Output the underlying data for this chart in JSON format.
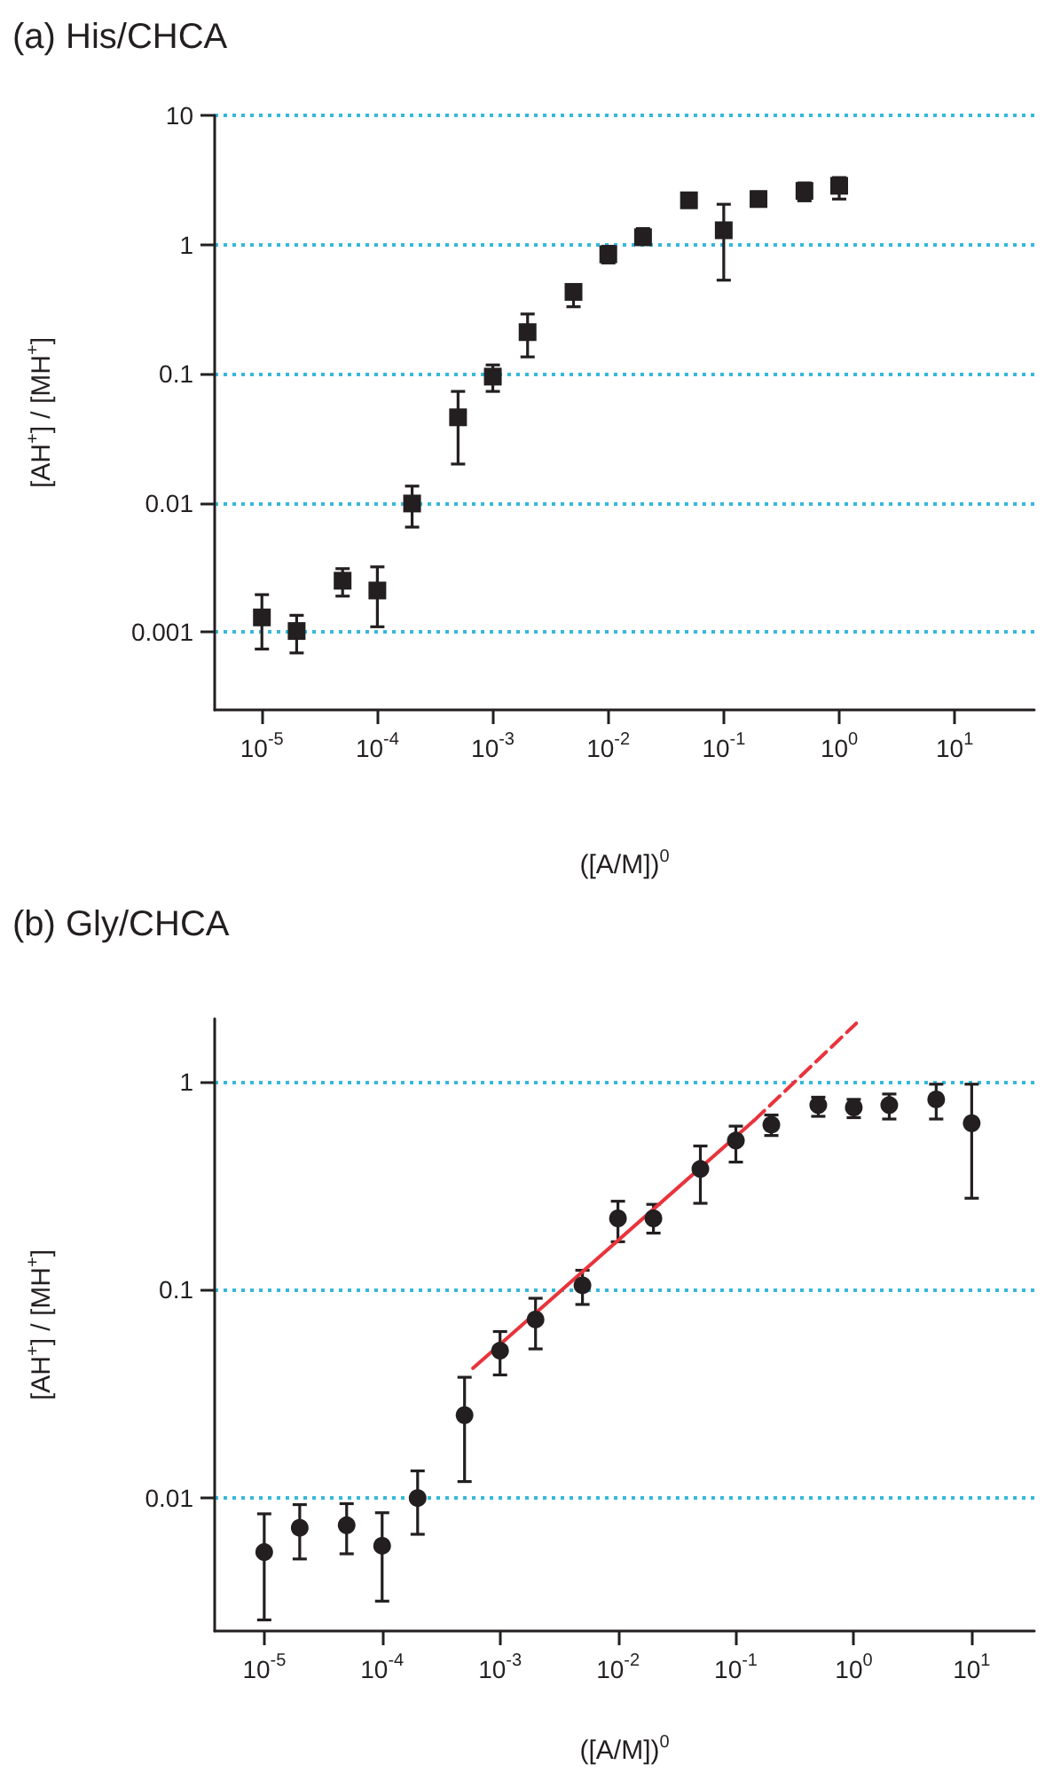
{
  "chart_data": [
    {
      "type": "scatter",
      "title": "(a) His/CHCA",
      "xlabel": "([A/M])$^{0}$",
      "ylabel": "[AH$^{+}$] / [MH$^{+}$]",
      "log": "xy",
      "grid": "y",
      "marker": "square",
      "x": [
        1e-05,
        2e-05,
        5e-05,
        0.0001,
        0.0002,
        0.0005,
        0.001,
        0.002,
        0.005,
        0.01,
        0.02,
        0.05,
        0.1,
        0.2,
        0.5,
        1
      ],
      "series": [
        {
          "color": "#231f20",
          "values": [
            0.0013,
            0.00102,
            0.0025,
            0.0021,
            0.0099,
            0.046,
            0.095,
            0.21,
            0.43,
            0.84,
            1.14,
            2.2,
            1.29,
            2.25,
            2.6,
            2.85
          ],
          "errors": [
            [
              0.00074,
              0.00195
            ],
            [
              0.00069,
              0.00135
            ],
            [
              0.0019,
              0.0031
            ],
            [
              0.0011,
              0.0032
            ],
            [
              0.0065,
              0.0135
            ],
            [
              0.02,
              0.073
            ],
            [
              0.073,
              0.117
            ],
            [
              0.135,
              0.29
            ],
            [
              0.33,
              0.49
            ],
            [
              0.72,
              0.97
            ],
            [
              1.0,
              1.33
            ],
            null,
            [
              0.53,
              2.05
            ],
            [
              1.99,
              2.55
            ],
            [
              2.18,
              3.0
            ],
            [
              2.25,
              3.3
            ]
          ]
        }
      ],
      "xlim": [
        3.9e-06,
        49
      ],
      "xticks": [
        {
          "value": 1e-05,
          "label": "10$^{-5}$"
        },
        {
          "value": 0.0001,
          "label": "10$^{-4}$"
        },
        {
          "value": 0.001,
          "label": "10$^{-3}$"
        },
        {
          "value": 0.01,
          "label": "10$^{-2}$"
        },
        {
          "value": 0.1,
          "label": "10$^{-1}$"
        },
        {
          "value": 1,
          "label": "10$^{0}$"
        },
        {
          "value": 10,
          "label": "10$^{1}$"
        }
      ],
      "ylim": [
        0.00025,
        10
      ],
      "yticks": [
        0.001,
        0.01,
        0.1,
        1,
        10
      ]
    },
    {
      "type": "scatter",
      "title": "(b) Gly/CHCA",
      "xlabel": "([A/M])$^{0}$",
      "ylabel": "[AH$^{+}$] / [MH$^{+}$]",
      "log": "xy",
      "grid": "y",
      "marker": "circle",
      "x": [
        1e-05,
        2e-05,
        5e-05,
        0.0001,
        0.0002,
        0.0005,
        0.001,
        0.002,
        0.005,
        0.01,
        0.02,
        0.05,
        0.1,
        0.2,
        0.5,
        1,
        2,
        5,
        10
      ],
      "series": [
        {
          "color": "#231f20",
          "values": [
            0.0055,
            0.0072,
            0.0074,
            0.0059,
            0.01,
            0.025,
            0.051,
            0.072,
            0.105,
            0.22,
            0.22,
            0.38,
            0.52,
            0.62,
            0.77,
            0.75,
            0.77,
            0.82,
            0.63
          ],
          "errors": [
            [
              0.0026,
              0.0084
            ],
            [
              0.0051,
              0.0093
            ],
            [
              0.0054,
              0.0094
            ],
            [
              0.0032,
              0.0085
            ],
            [
              0.0067,
              0.0135
            ],
            [
              0.012,
              0.038
            ],
            [
              0.039,
              0.063
            ],
            [
              0.052,
              0.091
            ],
            [
              0.085,
              0.124
            ],
            [
              0.17,
              0.266
            ],
            [
              0.187,
              0.257
            ],
            [
              0.26,
              0.49
            ],
            [
              0.41,
              0.61
            ],
            [
              0.55,
              0.69
            ],
            [
              0.68,
              0.84
            ],
            [
              0.67,
              0.82
            ],
            [
              0.66,
              0.87
            ],
            [
              0.66,
              0.97
            ],
            [
              0.275,
              0.97
            ]
          ]
        },
        {
          "type": "line",
          "color": "#e8343c",
          "line_style": "solid",
          "marker": "none",
          "x": [
            0.00059,
            0.143
          ],
          "values": [
            0.042,
            0.65
          ]
        },
        {
          "type": "line",
          "color": "#e8343c",
          "line_style": "dashed",
          "marker": "none",
          "x": [
            0.143,
            1.05
          ],
          "values": [
            0.65,
            1.9
          ]
        }
      ],
      "xlim": [
        3.8e-06,
        34
      ],
      "xticks": [
        {
          "value": 1e-05,
          "label": "10$^{-5}$"
        },
        {
          "value": 0.0001,
          "label": "10$^{-4}$"
        },
        {
          "value": 0.001,
          "label": "10$^{-3}$"
        },
        {
          "value": 0.01,
          "label": "10$^{-2}$"
        },
        {
          "value": 0.1,
          "label": "10$^{-1}$"
        },
        {
          "value": 1,
          "label": "10$^{0}$"
        },
        {
          "value": 10,
          "label": "10$^{1}$"
        }
      ],
      "ylim": [
        0.0023,
        2
      ],
      "yticks": [
        0.01,
        0.1,
        1
      ]
    }
  ]
}
